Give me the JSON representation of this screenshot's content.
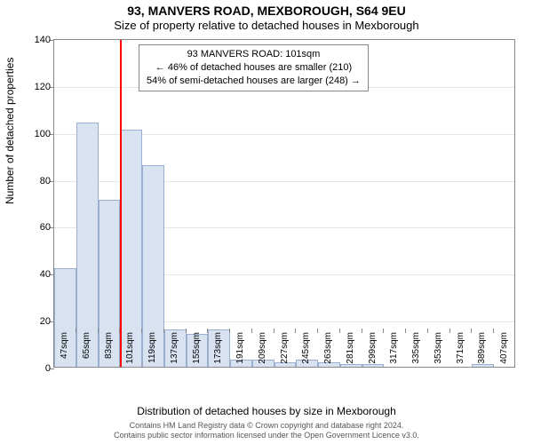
{
  "titles": {
    "main": "93, MANVERS ROAD, MEXBOROUGH, S64 9EU",
    "sub": "Size of property relative to detached houses in Mexborough",
    "yaxis": "Number of detached properties",
    "xaxis": "Distribution of detached houses by size in Mexborough"
  },
  "chart": {
    "type": "histogram",
    "ylim": [
      0,
      140
    ],
    "ytick_step": 20,
    "bar_fill": "#d9e2f1",
    "bar_stroke": "#9aaed0",
    "grid_color": "#e6e6e6",
    "background_color": "#ffffff",
    "axis_color": "#888888",
    "marker_color": "#ff0000",
    "marker_value": 101,
    "title_fontsize": 14,
    "subtitle_fontsize": 13,
    "axis_label_fontsize": 12,
    "tick_fontsize": 11,
    "xtick_fontsize": 10,
    "categories": [
      "47sqm",
      "65sqm",
      "83sqm",
      "101sqm",
      "119sqm",
      "137sqm",
      "155sqm",
      "173sqm",
      "191sqm",
      "209sqm",
      "227sqm",
      "245sqm",
      "263sqm",
      "281sqm",
      "299sqm",
      "317sqm",
      "335sqm",
      "353sqm",
      "371sqm",
      "389sqm",
      "407sqm"
    ],
    "values": [
      42,
      104,
      71,
      101,
      86,
      16,
      14,
      16,
      3,
      3,
      2,
      3,
      2,
      1,
      1,
      0,
      0,
      0,
      0,
      1,
      0
    ]
  },
  "info_box": {
    "line1": "93 MANVERS ROAD: 101sqm",
    "line2": "← 46% of detached houses are smaller (210)",
    "line3": "54% of semi-detached houses are larger (248) →"
  },
  "attribution": {
    "line1": "Contains HM Land Registry data © Crown copyright and database right 2024.",
    "line2": "Contains public sector information licensed under the Open Government Licence v3.0."
  }
}
